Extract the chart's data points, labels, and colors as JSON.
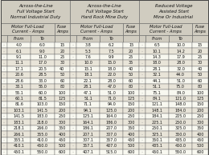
{
  "sec_titles": [
    "Across-the-Line\nFull Voltage Start\nNormal Industrial Duty",
    "Across-the-Line\nFull Voltage Start\nHard Rock Mine Duty",
    "Reduced Voltage\nAssisted Start\nMine Or Industrial"
  ],
  "rows": [
    [
      "4.0",
      "6.0",
      "15",
      "3.8",
      "6.2",
      "15",
      "6.5",
      "10.0",
      "15"
    ],
    [
      "6.1",
      "9.0",
      "20",
      "5.3",
      "7.5",
      "20",
      "10.1",
      "14.2",
      "20"
    ],
    [
      "9.1",
      "11.0",
      "25",
      "7.6",
      "9.9",
      "25",
      "14.3",
      "17.9",
      "25"
    ],
    [
      "11.1",
      "17.0",
      "30",
      "10.0",
      "15.0",
      "35",
      "18.0",
      "28.0",
      "30"
    ],
    [
      "17.1",
      "20.5",
      "40",
      "15.1",
      "18.0",
      "40",
      "28.1",
      "32.0",
      "40"
    ],
    [
      "20.6",
      "28.5",
      "50",
      "18.1",
      "22.0",
      "50",
      "32.1",
      "44.0",
      "50"
    ],
    [
      "28.6",
      "33.0",
      "60",
      "22.1",
      "28.0",
      "60",
      "44.1",
      "51.0",
      "60"
    ],
    [
      "33.1",
      "55.0",
      "80",
      "28.1",
      "47.0",
      "80",
      "51.1",
      "75.0",
      "80"
    ],
    [
      "55.1",
      "60.0",
      "100",
      "47.1",
      "51.0",
      "100",
      "75.1",
      "84.0",
      "100"
    ],
    [
      "60.1",
      "81.5",
      "125",
      "51.1",
      "71.0",
      "125",
      "84.1",
      "121.0",
      "125"
    ],
    [
      "81.6",
      "103.0",
      "150",
      "71.1",
      "94.0",
      "150",
      "121.1",
      "148.0",
      "150"
    ],
    [
      "103.1",
      "141.5",
      "200",
      "94.1",
      "125.0",
      "200",
      "148.1",
      "184.0",
      "200"
    ],
    [
      "141.5",
      "183.0",
      "250",
      "125.1",
      "164.0",
      "250",
      "184.1",
      "225.0",
      "250"
    ],
    [
      "183.1",
      "218.0",
      "300",
      "164.1",
      "186.0",
      "300",
      "225.1",
      "250.0",
      "300"
    ],
    [
      "218.1",
      "266.0",
      "350",
      "186.1",
      "207.0",
      "350",
      "250.1",
      "325.0",
      "350"
    ],
    [
      "266.1",
      "355.0",
      "400",
      "207.1",
      "307.0",
      "400",
      "325.1",
      "350.0",
      "400"
    ],
    [
      "355.1",
      "410.0",
      "450",
      "307.1",
      "357.0",
      "450",
      "350.1",
      "435.0",
      "450"
    ],
    [
      "410.1",
      "450.0",
      "500",
      "357.1",
      "407.0",
      "500",
      "435.1",
      "450.0",
      "500"
    ],
    [
      "450.1",
      "550.0",
      "600",
      "407.1",
      "515.0",
      "600",
      "450.1",
      "550.0",
      "600"
    ]
  ],
  "bg_color": "#e8e4d8",
  "header_bg": "#d0ccc0",
  "white_bg": "#f8f8f0",
  "line_color": "#666666",
  "text_color": "#111111",
  "header_fontsize": 4.0,
  "subheader_fontsize": 3.8,
  "data_fontsize": 3.5
}
